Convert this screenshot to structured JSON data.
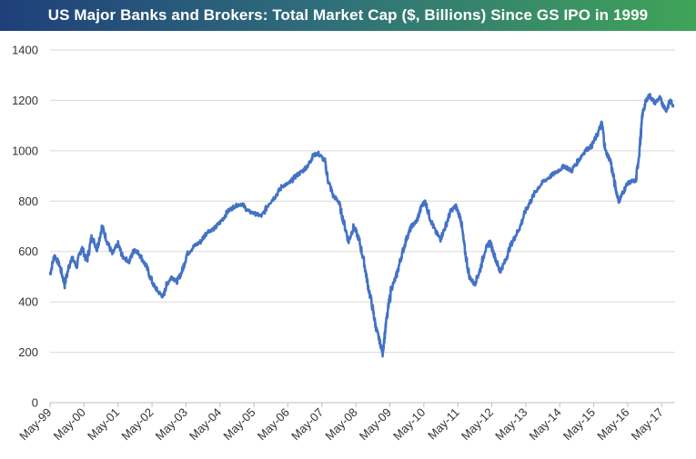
{
  "chart_data": {
    "type": "line",
    "title": "US Major Banks and Brokers: Total Market Cap ($, Billions) Since GS IPO in 1999",
    "xlabel": "",
    "ylabel": "",
    "ylim": [
      0,
      1400
    ],
    "yticks": [
      "0",
      "200",
      "400",
      "600",
      "800",
      "1000",
      "1200",
      "1400"
    ],
    "xticks": [
      "May-99",
      "May-00",
      "May-01",
      "May-02",
      "May-03",
      "May-04",
      "May-05",
      "May-06",
      "May-07",
      "May-08",
      "May-09",
      "May-10",
      "May-11",
      "May-12",
      "May-13",
      "May-14",
      "May-15",
      "May-16",
      "May-17"
    ],
    "grid": true,
    "line_color": "#4472c4",
    "series": [
      {
        "x": [
          1999.37,
          1999.5,
          1999.65,
          1999.8,
          2000.0,
          2000.15,
          2000.3,
          2000.45,
          2000.6,
          2000.75,
          2000.9,
          2001.05,
          2001.2,
          2001.37,
          2001.5,
          2001.7,
          2001.85,
          2002.0,
          2002.2,
          2002.4,
          2002.55,
          2002.7,
          2002.8,
          2002.95,
          2003.1,
          2003.25,
          2003.4,
          2003.6,
          2003.8,
          2004.0,
          2004.2,
          2004.4,
          2004.6,
          2004.8,
          2005.0,
          2005.2,
          2005.4,
          2005.6,
          2005.8,
          2006.0,
          2006.2,
          2006.4,
          2006.6,
          2006.8,
          2007.0,
          2007.1,
          2007.25,
          2007.45,
          2007.55,
          2007.7,
          2007.85,
          2008.0,
          2008.15,
          2008.3,
          2008.45,
          2008.6,
          2008.7,
          2008.85,
          2008.95,
          2009.05,
          2009.15,
          2009.25,
          2009.4,
          2009.55,
          2009.7,
          2009.85,
          2010.0,
          2010.15,
          2010.3,
          2010.4,
          2010.55,
          2010.7,
          2010.85,
          2011.0,
          2011.15,
          2011.3,
          2011.45,
          2011.55,
          2011.7,
          2011.85,
          2012.0,
          2012.15,
          2012.3,
          2012.45,
          2012.6,
          2012.75,
          2012.9,
          2013.05,
          2013.2,
          2013.35,
          2013.5,
          2013.7,
          2013.9,
          2014.1,
          2014.3,
          2014.5,
          2014.7,
          2014.9,
          2015.1,
          2015.3,
          2015.45,
          2015.6,
          2015.7,
          2015.85,
          2016.0,
          2016.1,
          2016.2,
          2016.35,
          2016.5,
          2016.6,
          2016.7,
          2016.8,
          2016.9,
          2017.0,
          2017.15,
          2017.3,
          2017.4,
          2017.5,
          2017.6,
          2017.7
        ],
        "y": [
          510,
          585,
          545,
          470,
          580,
          540,
          620,
          560,
          660,
          610,
          700,
          640,
          590,
          630,
          580,
          560,
          610,
          590,
          540,
          470,
          440,
          420,
          470,
          500,
          480,
          520,
          590,
          620,
          640,
          680,
          690,
          720,
          760,
          780,
          790,
          760,
          750,
          740,
          790,
          820,
          860,
          870,
          900,
          920,
          950,
          980,
          990,
          960,
          880,
          820,
          800,
          720,
          640,
          700,
          650,
          560,
          480,
          380,
          300,
          250,
          200,
          310,
          450,
          500,
          580,
          650,
          700,
          720,
          780,
          800,
          730,
          680,
          650,
          700,
          760,
          780,
          730,
          620,
          500,
          470,
          520,
          600,
          640,
          580,
          520,
          560,
          620,
          660,
          700,
          760,
          800,
          850,
          880,
          900,
          920,
          940,
          920,
          960,
          1000,
          1020,
          1060,
          1110,
          1000,
          960,
          850,
          800,
          830,
          870,
          880,
          880,
          1000,
          1150,
          1200,
          1220,
          1190,
          1210,
          1180,
          1160,
          1200,
          1180
        ]
      }
    ]
  }
}
